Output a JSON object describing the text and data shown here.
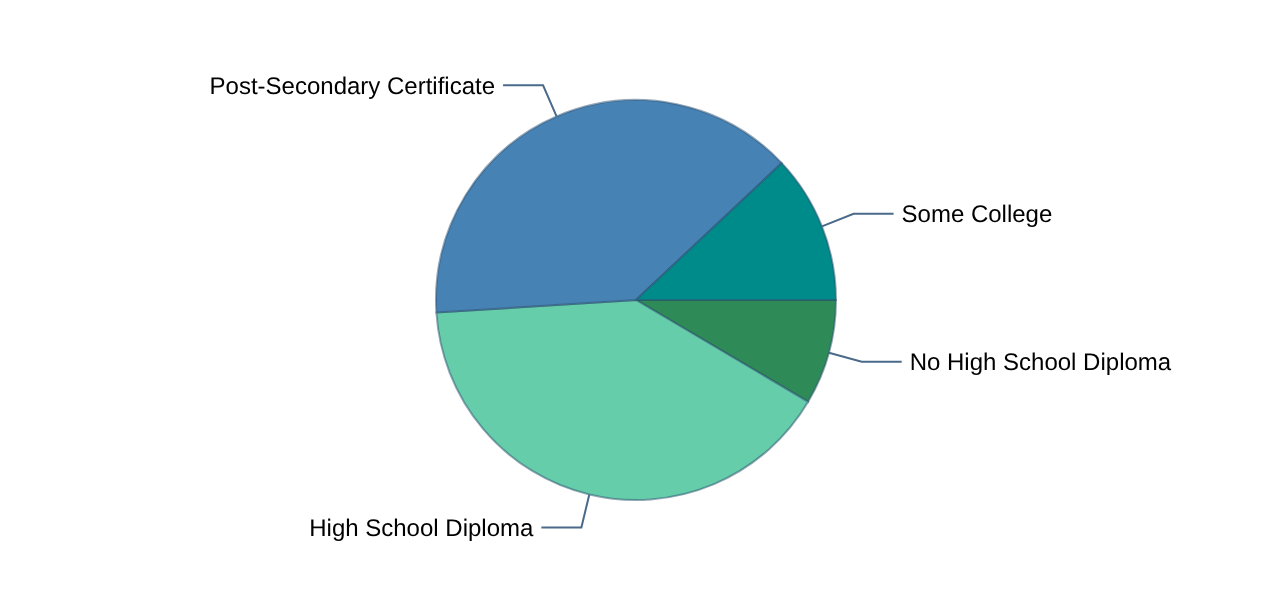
{
  "chart_data": {
    "type": "pie",
    "categories": [
      "No High School Diploma",
      "High School Diploma",
      "Post-Secondary Certificate",
      "Some College"
    ],
    "values": [
      8.5,
      40.5,
      39,
      12
    ],
    "colors": [
      "#2e8b57",
      "#66cdaa",
      "#4682b4",
      "#008b8b"
    ],
    "legend": false
  }
}
